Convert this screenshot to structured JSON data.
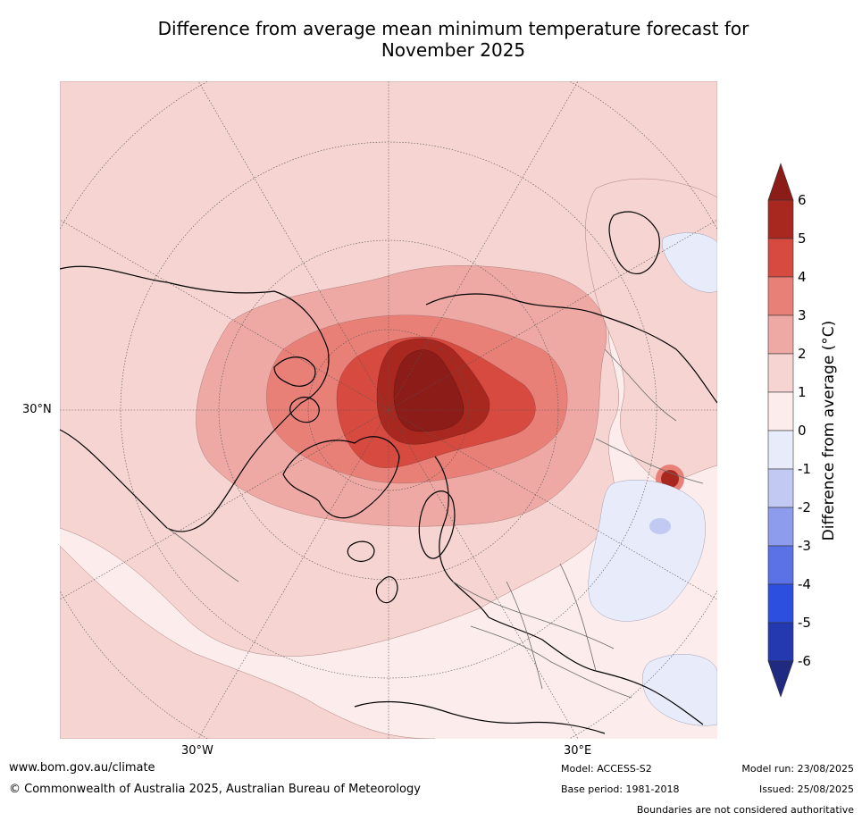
{
  "title_line1": "Difference from average mean minimum temperature forecast for",
  "title_line2": "November 2025",
  "map": {
    "projection": "north-polar-stereographic",
    "lat_label": "30°N",
    "lon_labels": [
      "30°W",
      "30°E"
    ]
  },
  "colorbar": {
    "label": "Difference from average (°C)",
    "ticks": [
      "6",
      "5",
      "4",
      "3",
      "2",
      "1",
      "0",
      "-1",
      "-2",
      "-3",
      "-4",
      "-5",
      "-6"
    ],
    "colors": [
      "#8b1c18",
      "#a82820",
      "#d64a40",
      "#e88078",
      "#eea9a4",
      "#f6d4d2",
      "#fceceb",
      "#e8ebfa",
      "#c2c9f2",
      "#8d9cec",
      "#5a72e6",
      "#2c4fe0",
      "#2438b0",
      "#1f2a80"
    ]
  },
  "footer": {
    "website": "www.bom.gov.au/climate",
    "copyright": "© Commonwealth of Australia 2025, Australian Bureau of Meteorology",
    "model": "Model: ACCESS-S2",
    "base_period": "Base period: 1981-2018",
    "model_run": "Model run: 23/08/2025",
    "issued": "Issued: 25/08/2025",
    "disclaimer": "Boundaries are not considered authoritative"
  }
}
